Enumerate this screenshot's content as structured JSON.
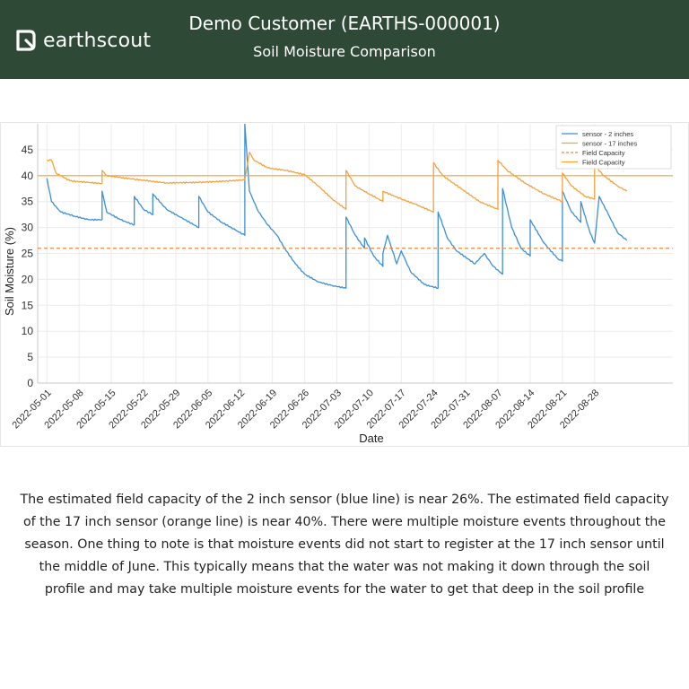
{
  "header": {
    "brand": "earthscout",
    "title": "Demo Customer (EARTHS-000001)",
    "subtitle": "Soil Moisture Comparison",
    "background_color": "#2e4a37",
    "logo_icon": "earthscout-logo-icon"
  },
  "chart_data": {
    "type": "line",
    "title": "",
    "xlabel": "Date",
    "ylabel": "Soil Moisture (%)",
    "xlim": [
      "2022-04-29",
      "2022-09-14"
    ],
    "ylim": [
      0,
      50
    ],
    "yticks": [
      0,
      5,
      10,
      15,
      20,
      25,
      30,
      35,
      40,
      45
    ],
    "xtick_labels": [
      "2022-05-01",
      "2022-05-08",
      "2022-05-15",
      "2022-05-22",
      "2022-05-29",
      "2022-06-05",
      "2022-06-12",
      "2022-06-19",
      "2022-06-26",
      "2022-07-03",
      "2022-07-10",
      "2022-07-17",
      "2022-07-24",
      "2022-07-31",
      "2022-08-07",
      "2022-08-14",
      "2022-08-21",
      "2022-08-28"
    ],
    "grid": true,
    "legend_position": "top-right",
    "series": [
      {
        "name": "sensor - 2 inches",
        "color": "#3b8fd8",
        "style": "solid",
        "points": [
          [
            "2022-05-01",
            39.5
          ],
          [
            "2022-05-02",
            35
          ],
          [
            "2022-05-04",
            33
          ],
          [
            "2022-05-07",
            32.2
          ],
          [
            "2022-05-10",
            31.5
          ],
          [
            "2022-05-13",
            31.5
          ],
          [
            "2022-05-13",
            37
          ],
          [
            "2022-05-14",
            33
          ],
          [
            "2022-05-17",
            31.5
          ],
          [
            "2022-05-20",
            30.5
          ],
          [
            "2022-05-20",
            36
          ],
          [
            "2022-05-22",
            33.5
          ],
          [
            "2022-05-24",
            32.5
          ],
          [
            "2022-05-24",
            36.5
          ],
          [
            "2022-05-27",
            33.5
          ],
          [
            "2022-05-30",
            32
          ],
          [
            "2022-06-03",
            30
          ],
          [
            "2022-06-03",
            36
          ],
          [
            "2022-06-05",
            33
          ],
          [
            "2022-06-08",
            31
          ],
          [
            "2022-06-11",
            29.5
          ],
          [
            "2022-06-13",
            28.5
          ],
          [
            "2022-06-13",
            36.5
          ],
          [
            "2022-06-13",
            50
          ],
          [
            "2022-06-14",
            37
          ],
          [
            "2022-06-16",
            33
          ],
          [
            "2022-06-18",
            30.5
          ],
          [
            "2022-06-20",
            28.5
          ],
          [
            "2022-06-22",
            25.5
          ],
          [
            "2022-06-24",
            23
          ],
          [
            "2022-06-26",
            21
          ],
          [
            "2022-06-29",
            19.5
          ],
          [
            "2022-07-02",
            18.8
          ],
          [
            "2022-07-05",
            18.3
          ],
          [
            "2022-07-05",
            32
          ],
          [
            "2022-07-07",
            28.5
          ],
          [
            "2022-07-09",
            26
          ],
          [
            "2022-07-09",
            28
          ],
          [
            "2022-07-11",
            24.5
          ],
          [
            "2022-07-13",
            22.5
          ],
          [
            "2022-07-13",
            25
          ],
          [
            "2022-07-14",
            28.5
          ],
          [
            "2022-07-16",
            23
          ],
          [
            "2022-07-17",
            25.5
          ],
          [
            "2022-07-19",
            21.5
          ],
          [
            "2022-07-22",
            19
          ],
          [
            "2022-07-25",
            18.3
          ],
          [
            "2022-07-25",
            33
          ],
          [
            "2022-07-27",
            28
          ],
          [
            "2022-07-29",
            25.5
          ],
          [
            "2022-08-02",
            23
          ],
          [
            "2022-08-04",
            25
          ],
          [
            "2022-08-06",
            22.5
          ],
          [
            "2022-08-08",
            21
          ],
          [
            "2022-08-08",
            37.5
          ],
          [
            "2022-08-10",
            30
          ],
          [
            "2022-08-12",
            26
          ],
          [
            "2022-08-14",
            24.5
          ],
          [
            "2022-08-14",
            31.5
          ],
          [
            "2022-08-17",
            27
          ],
          [
            "2022-08-20",
            24
          ],
          [
            "2022-08-21",
            23.5
          ],
          [
            "2022-08-21",
            37
          ],
          [
            "2022-08-23",
            33
          ],
          [
            "2022-08-25",
            31
          ],
          [
            "2022-08-25",
            35
          ],
          [
            "2022-08-27",
            29
          ],
          [
            "2022-08-28",
            27
          ],
          [
            "2022-08-29",
            36
          ],
          [
            "2022-08-31",
            32.5
          ],
          [
            "2022-09-02",
            29
          ],
          [
            "2022-09-04",
            27.5
          ]
        ]
      },
      {
        "name": "sensor - 17 inches",
        "color": "#f5a23a",
        "style": "solid",
        "points": [
          [
            "2022-05-01",
            43
          ],
          [
            "2022-05-02",
            43
          ],
          [
            "2022-05-03",
            40.5
          ],
          [
            "2022-05-06",
            39
          ],
          [
            "2022-05-10",
            38.7
          ],
          [
            "2022-05-13",
            38.5
          ],
          [
            "2022-05-13",
            41
          ],
          [
            "2022-05-14",
            40
          ],
          [
            "2022-05-20",
            39.3
          ],
          [
            "2022-05-27",
            38.6
          ],
          [
            "2022-06-03",
            38.7
          ],
          [
            "2022-06-10",
            39
          ],
          [
            "2022-06-13",
            39.2
          ],
          [
            "2022-06-14",
            44.5
          ],
          [
            "2022-06-15",
            43
          ],
          [
            "2022-06-18",
            41.5
          ],
          [
            "2022-06-22",
            41
          ],
          [
            "2022-06-26",
            40.2
          ],
          [
            "2022-06-29",
            38
          ],
          [
            "2022-07-02",
            35.5
          ],
          [
            "2022-07-05",
            33.5
          ],
          [
            "2022-07-05",
            41
          ],
          [
            "2022-07-07",
            38
          ],
          [
            "2022-07-10",
            36.5
          ],
          [
            "2022-07-13",
            35
          ],
          [
            "2022-07-13",
            37
          ],
          [
            "2022-07-17",
            35.5
          ],
          [
            "2022-07-20",
            34.5
          ],
          [
            "2022-07-24",
            33
          ],
          [
            "2022-07-24",
            42.5
          ],
          [
            "2022-07-26",
            40
          ],
          [
            "2022-07-30",
            37.5
          ],
          [
            "2022-08-03",
            35
          ],
          [
            "2022-08-07",
            33.5
          ],
          [
            "2022-08-07",
            43
          ],
          [
            "2022-08-09",
            41
          ],
          [
            "2022-08-13",
            38.5
          ],
          [
            "2022-08-17",
            36.5
          ],
          [
            "2022-08-21",
            35
          ],
          [
            "2022-08-21",
            40.5
          ],
          [
            "2022-08-23",
            38
          ],
          [
            "2022-08-26",
            36
          ],
          [
            "2022-08-28",
            35.5
          ],
          [
            "2022-08-28",
            42
          ],
          [
            "2022-08-30",
            40
          ],
          [
            "2022-09-02",
            38
          ],
          [
            "2022-09-04",
            37
          ]
        ]
      },
      {
        "name": "Field Capacity",
        "color": "#f5883a",
        "style": "dashed",
        "constant": 26
      },
      {
        "name": "Field Capacity",
        "color": "#f5a23a",
        "style": "solid",
        "constant": 40
      }
    ]
  },
  "description": "The estimated field capacity of the 2 inch sensor (blue line) is near 26%. The estimated field capacity of the 17 inch sensor (orange line) is near 40%. There were multiple moisture events throughout the season. One thing to note is that moisture events did not start to register at the 17 inch sensor until the middle of June. This typically means that the water was not making it down through the soil profile and may take multiple moisture events for the water to get that deep in the soil profile"
}
